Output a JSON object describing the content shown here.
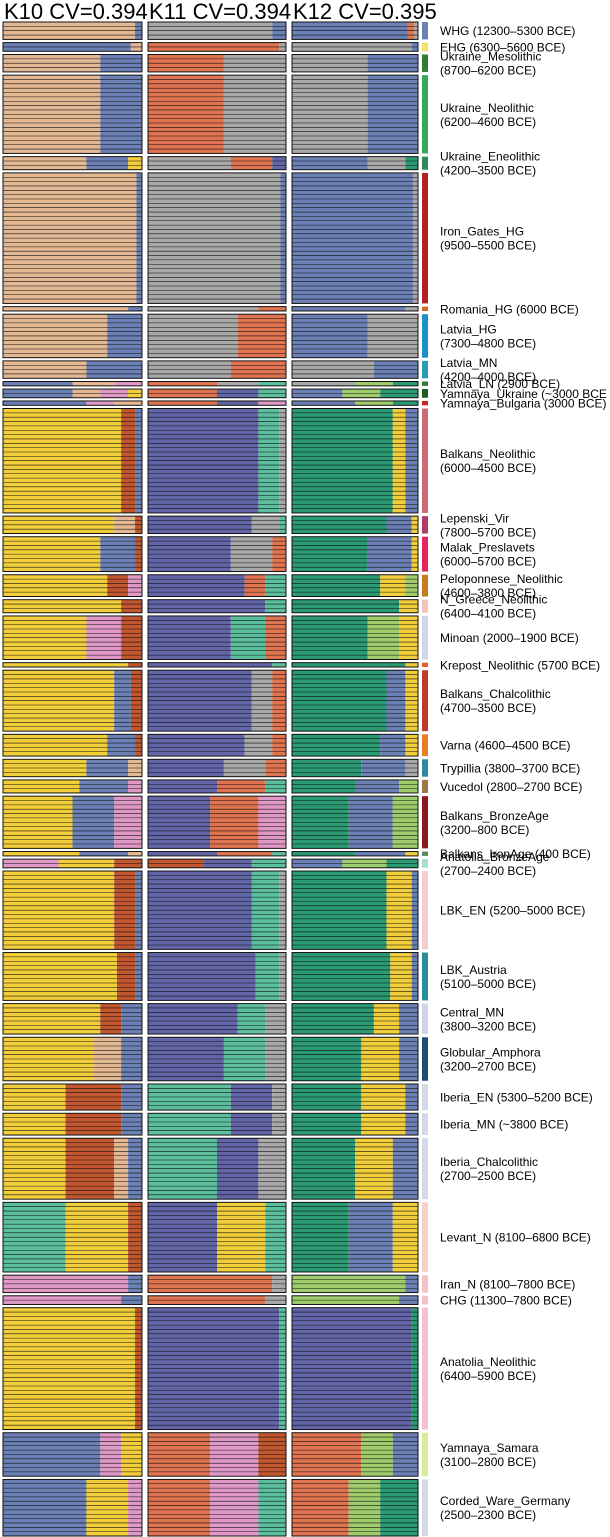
{
  "chart_data": {
    "type": "admixture_bar",
    "panels": [
      {
        "label": "K10 CV=0.394"
      },
      {
        "label": "K11 CV=0.394"
      },
      {
        "label": "K12 CV=0.395"
      }
    ],
    "colors": {
      "tan": "#e5b894",
      "slate": "#6b81b6",
      "grey": "#a9a9a9",
      "orange": "#e07450",
      "yellow": "#f2cf3a",
      "rust": "#c2562e",
      "indigo": "#6266a8",
      "green": "#2a9a73",
      "teal": "#5bbf9d",
      "pink": "#e098c6",
      "lime": "#9fcd6b"
    },
    "groups": [
      {
        "name": "WHG",
        "label": [
          "WHG (12300–5300 BCE)"
        ],
        "n": 4,
        "marker": "#6b81b6",
        "comp": [
          {
            "tan": 0.95,
            "slate": 0.05
          },
          {
            "grey": 0.9,
            "slate": 0.1
          },
          {
            "slate": 0.92,
            "orange": 0.05,
            "grey": 0.03
          }
        ]
      },
      {
        "name": "EHG",
        "label": [
          "EHG (6300–5600 BCE)"
        ],
        "n": 2,
        "marker": "#f4e36a",
        "comp": [
          {
            "slate": 0.92,
            "tan": 0.08
          },
          {
            "orange": 0.95,
            "grey": 0.05
          },
          {
            "grey": 0.95,
            "slate": 0.05
          }
        ]
      },
      {
        "name": "Ukraine_Mesolithic",
        "label": [
          "Ukraine_Mesolithic",
          "(8700–6200 BCE)"
        ],
        "n": 4,
        "marker": "#2e7d32",
        "comp": [
          {
            "tan": 0.7,
            "slate": 0.3
          },
          {
            "orange": 0.55,
            "grey": 0.45
          },
          {
            "grey": 0.6,
            "slate": 0.4
          }
        ]
      },
      {
        "name": "Ukraine_Neolithic",
        "label": [
          "Ukraine_Neolithic",
          "(6200–4600 BCE)"
        ],
        "n": 18,
        "marker": "#3aa85a",
        "comp": [
          {
            "tan": 0.7,
            "slate": 0.3
          },
          {
            "orange": 0.55,
            "grey": 0.45
          },
          {
            "grey": 0.6,
            "slate": 0.4
          }
        ]
      },
      {
        "name": "Ukraine_Eneolithic",
        "label": [
          "Ukraine_Eneolithic",
          "(4200–3500 BCE)"
        ],
        "n": 3,
        "marker": "#2e8b57",
        "comp": [
          {
            "tan": 0.6,
            "slate": 0.3,
            "yellow": 0.1
          },
          {
            "grey": 0.6,
            "orange": 0.3,
            "indigo": 0.1
          },
          {
            "slate": 0.6,
            "grey": 0.3,
            "green": 0.1
          }
        ]
      },
      {
        "name": "Iron_Gates_HG",
        "label": [
          "Iron_Gates_HG",
          "(9500–5500 BCE)"
        ],
        "n": 30,
        "marker": "#b22222",
        "comp": [
          {
            "tan": 0.96,
            "slate": 0.04
          },
          {
            "grey": 0.96,
            "slate": 0.04
          },
          {
            "slate": 0.96,
            "grey": 0.04
          }
        ]
      },
      {
        "name": "Romania_HG",
        "label": [
          "Romania_HG (6000 BCE)"
        ],
        "n": 1,
        "marker": "#d2691e",
        "comp": [
          {
            "tan": 0.9,
            "slate": 0.1
          },
          {
            "grey": 0.8,
            "orange": 0.2
          },
          {
            "slate": 0.9,
            "grey": 0.1
          }
        ]
      },
      {
        "name": "Latvia_HG",
        "label": [
          "Latvia_HG",
          "(7300–4800 BCE)"
        ],
        "n": 10,
        "marker": "#1e90c8",
        "comp": [
          {
            "tan": 0.75,
            "slate": 0.25
          },
          {
            "grey": 0.65,
            "orange": 0.35
          },
          {
            "slate": 0.6,
            "grey": 0.4
          }
        ]
      },
      {
        "name": "Latvia_MN",
        "label": [
          "Latvia_MN",
          "(4200–4000 BCE)"
        ],
        "n": 4,
        "marker": "#2a9bb4",
        "comp": [
          {
            "tan": 0.6,
            "slate": 0.4
          },
          {
            "grey": 0.6,
            "orange": 0.4
          },
          {
            "grey": 0.65,
            "slate": 0.35
          }
        ]
      },
      {
        "name": "Latvia_LN",
        "label": [
          "Latvia_LN (2900 BCE)"
        ],
        "n": 1,
        "marker": "#2e7d32",
        "comp": [
          {
            "slate": 0.5,
            "tan": 0.3,
            "pink": 0.2
          },
          {
            "orange": 0.5,
            "grey": 0.3,
            "teal": 0.2
          },
          {
            "grey": 0.5,
            "lime": 0.3,
            "green": 0.2
          }
        ]
      },
      {
        "name": "Yamnaya_Ukraine",
        "label": [
          "Yamnaya_Ukraine (~3000 BCE"
        ],
        "n": 2,
        "marker": "#1b5e20",
        "comp": [
          {
            "slate": 0.5,
            "tan": 0.2,
            "pink": 0.2,
            "yellow": 0.1
          },
          {
            "orange": 0.5,
            "indigo": 0.3,
            "teal": 0.2
          },
          {
            "slate": 0.4,
            "lime": 0.3,
            "green": 0.3
          }
        ]
      },
      {
        "name": "Yamnaya_Bulgaria",
        "label": [
          "Yamnaya_Bulgaria (3000 BCE)"
        ],
        "n": 1,
        "marker": "#c62828",
        "comp": [
          {
            "slate": 0.6,
            "pink": 0.2,
            "tan": 0.2
          },
          {
            "orange": 0.5,
            "indigo": 0.3,
            "pink": 0.2
          },
          {
            "slate": 0.5,
            "lime": 0.3,
            "green": 0.2
          }
        ]
      },
      {
        "name": "Balkans_Neolithic",
        "label": [
          "Balkans_Neolithic",
          "(6000–4500 BCE)"
        ],
        "n": 24,
        "marker": "#cc6b73",
        "comp": [
          {
            "yellow": 0.85,
            "rust": 0.1,
            "slate": 0.05
          },
          {
            "indigo": 0.8,
            "teal": 0.15,
            "grey": 0.05
          },
          {
            "green": 0.8,
            "yellow": 0.1,
            "slate": 0.1
          }
        ]
      },
      {
        "name": "Lepenski_Vir",
        "label": [
          "Lepenski_Vir",
          "(7800–5700 BCE)"
        ],
        "n": 4,
        "marker": "#b03a6a",
        "comp": [
          {
            "yellow": 0.8,
            "tan": 0.15,
            "rust": 0.05
          },
          {
            "indigo": 0.75,
            "grey": 0.2,
            "teal": 0.05
          },
          {
            "green": 0.75,
            "slate": 0.2,
            "yellow": 0.05
          }
        ]
      },
      {
        "name": "Malak_Preslavets",
        "label": [
          "Malak_Preslavets",
          "(6000–5700 BCE)"
        ],
        "n": 8,
        "marker": "#e0245e",
        "comp": [
          {
            "yellow": 0.7,
            "slate": 0.25,
            "rust": 0.05
          },
          {
            "indigo": 0.6,
            "grey": 0.3,
            "orange": 0.1
          },
          {
            "green": 0.6,
            "slate": 0.35,
            "yellow": 0.05
          }
        ]
      },
      {
        "name": "Peloponnese_Neolithic",
        "label": [
          "Peloponnese_Neolithic",
          "(4600–3800 BCE)"
        ],
        "n": 5,
        "marker": "#c77d1e",
        "comp": [
          {
            "yellow": 0.75,
            "rust": 0.15,
            "pink": 0.1
          },
          {
            "indigo": 0.7,
            "orange": 0.15,
            "teal": 0.15
          },
          {
            "green": 0.7,
            "yellow": 0.2,
            "lime": 0.1
          }
        ]
      },
      {
        "name": "N_Greece_Neolithic",
        "label": [
          "N_Greece_Neolithic",
          "(6400–4100 BCE)"
        ],
        "n": 3,
        "marker": "#f1c6b8",
        "comp": [
          {
            "yellow": 0.85,
            "rust": 0.15
          },
          {
            "indigo": 0.85,
            "teal": 0.15
          },
          {
            "green": 0.85,
            "yellow": 0.15
          }
        ]
      },
      {
        "name": "Minoan",
        "label": [
          "Minoan (2000–1900 BCE)"
        ],
        "n": 10,
        "marker": "#cfd6ea",
        "comp": [
          {
            "yellow": 0.6,
            "pink": 0.25,
            "rust": 0.15
          },
          {
            "indigo": 0.6,
            "teal": 0.25,
            "orange": 0.15
          },
          {
            "green": 0.6,
            "lime": 0.25,
            "yellow": 0.15
          }
        ]
      },
      {
        "name": "Krepost_Neolithic",
        "label": [
          "Krepost_Neolithic (5700 BCE)"
        ],
        "n": 1,
        "marker": "#e85a2a",
        "comp": [
          {
            "yellow": 0.9,
            "rust": 0.1
          },
          {
            "indigo": 0.9,
            "teal": 0.1
          },
          {
            "green": 0.9,
            "yellow": 0.1
          }
        ]
      },
      {
        "name": "Balkans_Chalcolithic",
        "label": [
          "Balkans_Chalcolithic",
          "(4700–3500 BCE)"
        ],
        "n": 14,
        "marker": "#c0392b",
        "comp": [
          {
            "yellow": 0.8,
            "slate": 0.12,
            "rust": 0.08
          },
          {
            "indigo": 0.75,
            "grey": 0.15,
            "orange": 0.1
          },
          {
            "green": 0.75,
            "slate": 0.15,
            "yellow": 0.1
          }
        ]
      },
      {
        "name": "Varna",
        "label": [
          "Varna (4600–4500 BCE)"
        ],
        "n": 5,
        "marker": "#e67e22",
        "comp": [
          {
            "yellow": 0.75,
            "slate": 0.2,
            "rust": 0.05
          },
          {
            "indigo": 0.7,
            "grey": 0.2,
            "orange": 0.1
          },
          {
            "green": 0.7,
            "slate": 0.2,
            "yellow": 0.1
          }
        ]
      },
      {
        "name": "Trypillia",
        "label": [
          "Trypillia (3800–3700 BCE)"
        ],
        "n": 4,
        "marker": "#2a8c9c",
        "comp": [
          {
            "yellow": 0.6,
            "slate": 0.3,
            "tan": 0.1
          },
          {
            "indigo": 0.55,
            "grey": 0.3,
            "orange": 0.15
          },
          {
            "green": 0.55,
            "slate": 0.35,
            "grey": 0.1
          }
        ]
      },
      {
        "name": "Vucedol",
        "label": [
          "Vucedol (2800–2700 BCE)"
        ],
        "n": 3,
        "marker": "#9a7a4a",
        "comp": [
          {
            "yellow": 0.55,
            "slate": 0.35,
            "pink": 0.1
          },
          {
            "indigo": 0.5,
            "orange": 0.35,
            "teal": 0.15
          },
          {
            "green": 0.5,
            "slate": 0.35,
            "lime": 0.15
          }
        ]
      },
      {
        "name": "Balkans_BronzeAge",
        "label": [
          "Balkans_BronzeAge",
          "(3200–800 BCE)"
        ],
        "n": 12,
        "marker": "#8b1a1a",
        "comp": [
          {
            "yellow": 0.5,
            "slate": 0.3,
            "pink": 0.2
          },
          {
            "indigo": 0.45,
            "orange": 0.35,
            "pink": 0.2
          },
          {
            "green": 0.45,
            "slate": 0.35,
            "lime": 0.2
          }
        ]
      },
      {
        "name": "Balkans_IronAge",
        "label": [
          "Balkans_IronAge (400 BCE)"
        ],
        "n": 1,
        "marker": "#5c8a5c",
        "comp": [
          {
            "yellow": 0.55,
            "slate": 0.35,
            "tan": 0.1
          },
          {
            "indigo": 0.5,
            "orange": 0.4,
            "teal": 0.1
          },
          {
            "green": 0.5,
            "slate": 0.4,
            "yellow": 0.1
          }
        ]
      },
      {
        "name": "Anatolia_BronzeAge",
        "label": [
          "Anatolia_BronzeAge",
          "(2700–2400 BCE)"
        ],
        "n": 2,
        "marker": "#a8e0c8",
        "comp": [
          {
            "pink": 0.4,
            "yellow": 0.4,
            "rust": 0.2
          },
          {
            "rust": 0.4,
            "indigo": 0.35,
            "teal": 0.25
          },
          {
            "slate": 0.4,
            "lime": 0.35,
            "green": 0.25
          }
        ]
      },
      {
        "name": "LBK_EN",
        "label": [
          "LBK_EN (5200–5000 BCE)"
        ],
        "n": 18,
        "marker": "#f3cdd0",
        "comp": [
          {
            "yellow": 0.8,
            "rust": 0.15,
            "slate": 0.05
          },
          {
            "indigo": 0.75,
            "teal": 0.2,
            "grey": 0.05
          },
          {
            "green": 0.75,
            "yellow": 0.2,
            "slate": 0.05
          }
        ]
      },
      {
        "name": "LBK_Austria",
        "label": [
          "LBK_Austria",
          "(5100–5000 BCE)"
        ],
        "n": 11,
        "marker": "#2a8c9c",
        "comp": [
          {
            "yellow": 0.82,
            "rust": 0.13,
            "slate": 0.05
          },
          {
            "indigo": 0.78,
            "teal": 0.17,
            "grey": 0.05
          },
          {
            "green": 0.78,
            "yellow": 0.17,
            "slate": 0.05
          }
        ]
      },
      {
        "name": "Central_MN",
        "label": [
          "Central_MN",
          "(3800–3200 BCE)"
        ],
        "n": 7,
        "marker": "#cdd6e6",
        "comp": [
          {
            "yellow": 0.7,
            "rust": 0.15,
            "slate": 0.15
          },
          {
            "indigo": 0.65,
            "teal": 0.2,
            "grey": 0.15
          },
          {
            "green": 0.65,
            "yellow": 0.2,
            "slate": 0.15
          }
        ]
      },
      {
        "name": "Globular_Amphora",
        "label": [
          "Globular_Amphora",
          "(3200–2700 BCE)"
        ],
        "n": 10,
        "marker": "#1c4e78",
        "comp": [
          {
            "yellow": 0.65,
            "tan": 0.2,
            "slate": 0.15
          },
          {
            "indigo": 0.55,
            "teal": 0.3,
            "grey": 0.15
          },
          {
            "green": 0.55,
            "yellow": 0.3,
            "slate": 0.15
          }
        ]
      },
      {
        "name": "Iberia_EN",
        "label": [
          "Iberia_EN (5300–5200 BCE)"
        ],
        "n": 6,
        "marker": "#d2dae8",
        "comp": [
          {
            "yellow": 0.45,
            "rust": 0.4,
            "slate": 0.15
          },
          {
            "teal": 0.6,
            "indigo": 0.3,
            "grey": 0.1
          },
          {
            "green": 0.55,
            "yellow": 0.35,
            "slate": 0.1
          }
        ]
      },
      {
        "name": "Iberia_MN",
        "label": [
          "Iberia_MN (~3800 BCE)"
        ],
        "n": 5,
        "marker": "#d2dae8",
        "comp": [
          {
            "yellow": 0.45,
            "rust": 0.4,
            "slate": 0.15
          },
          {
            "teal": 0.6,
            "indigo": 0.3,
            "grey": 0.1
          },
          {
            "green": 0.55,
            "yellow": 0.35,
            "slate": 0.1
          }
        ]
      },
      {
        "name": "Iberia_Chalcolithic",
        "label": [
          "Iberia_Chalcolithic",
          "(2700–2500 BCE)"
        ],
        "n": 14,
        "marker": "#d2dae8",
        "comp": [
          {
            "yellow": 0.45,
            "rust": 0.35,
            "tan": 0.1,
            "slate": 0.1
          },
          {
            "teal": 0.5,
            "indigo": 0.3,
            "grey": 0.2
          },
          {
            "green": 0.5,
            "yellow": 0.3,
            "slate": 0.2
          }
        ]
      },
      {
        "name": "Levant_N",
        "label": [
          "Levant_N (8100–6800 BCE)"
        ],
        "n": 16,
        "marker": "#f6d2c4",
        "comp": [
          {
            "teal": 0.45,
            "yellow": 0.45,
            "rust": 0.1
          },
          {
            "indigo": 0.5,
            "yellow": 0.35,
            "teal": 0.15
          },
          {
            "green": 0.45,
            "slate": 0.35,
            "yellow": 0.2
          }
        ]
      },
      {
        "name": "Iran_N",
        "label": [
          "Iran_N (8100–7800 BCE)"
        ],
        "n": 4,
        "marker": "#f3c2cc",
        "comp": [
          {
            "pink": 0.9,
            "slate": 0.1
          },
          {
            "orange": 0.9,
            "grey": 0.1
          },
          {
            "lime": 0.9,
            "slate": 0.1
          }
        ]
      },
      {
        "name": "CHG",
        "label": [
          "CHG (11300–7800 BCE)"
        ],
        "n": 2,
        "marker": "#f3c2cc",
        "comp": [
          {
            "pink": 0.85,
            "slate": 0.15
          },
          {
            "orange": 0.85,
            "grey": 0.15
          },
          {
            "lime": 0.85,
            "slate": 0.15
          }
        ]
      },
      {
        "name": "Anatolia_Neolithic",
        "label": [
          "Anatolia_Neolithic",
          "(6400–5900 BCE)"
        ],
        "n": 28,
        "marker": "#f3c2cc",
        "comp": [
          {
            "yellow": 0.95,
            "rust": 0.05
          },
          {
            "indigo": 0.95,
            "teal": 0.05
          },
          {
            "indigo": 0.95,
            "green": 0.05
          }
        ]
      },
      {
        "name": "Yamnaya_Samara",
        "label": [
          "Yamnaya_Samara",
          "(3100–2800 BCE)"
        ],
        "n": 10,
        "marker": "#d8ec9c",
        "comp": [
          {
            "slate": 0.7,
            "pink": 0.15,
            "yellow": 0.15
          },
          {
            "orange": 0.45,
            "pink": 0.35,
            "rust": 0.2
          },
          {
            "orange": 0.55,
            "lime": 0.25,
            "slate": 0.2
          }
        ]
      },
      {
        "name": "Corded_Ware_Germany",
        "label": [
          "Corded_Ware_Germany",
          "(2500–2300 BCE)"
        ],
        "n": 13,
        "marker": "#d2dae8",
        "comp": [
          {
            "slate": 0.6,
            "yellow": 0.3,
            "pink": 0.1
          },
          {
            "orange": 0.45,
            "pink": 0.35,
            "teal": 0.2
          },
          {
            "orange": 0.45,
            "lime": 0.25,
            "green": 0.3
          }
        ]
      }
    ]
  }
}
